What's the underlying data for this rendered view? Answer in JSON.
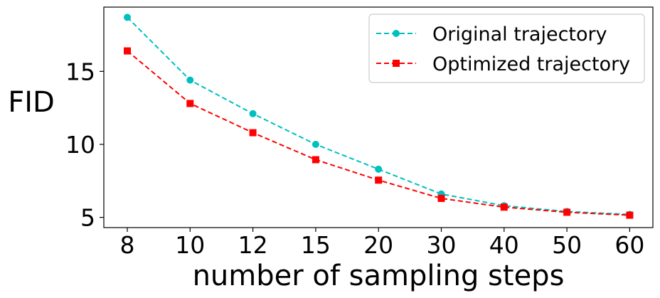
{
  "chart_data": {
    "type": "line",
    "title": "",
    "xlabel": "number of sampling steps",
    "ylabel": "FID",
    "categories": [
      "8",
      "10",
      "12",
      "15",
      "20",
      "30",
      "40",
      "50",
      "60"
    ],
    "yticks": [
      "5",
      "10",
      "15"
    ],
    "ylim": [
      4.3,
      19.4
    ],
    "grid": false,
    "legend_position": "top-right",
    "series": [
      {
        "name": "Original trajectory",
        "color": "#00BFBF",
        "marker": "circle",
        "linestyle": "dashed",
        "values": [
          18.7,
          14.4,
          12.1,
          10.0,
          8.3,
          6.6,
          5.8,
          5.4,
          5.2
        ]
      },
      {
        "name": "Optimized trajectory",
        "color": "#FF0000",
        "marker": "square",
        "linestyle": "dashed",
        "values": [
          16.4,
          12.8,
          10.8,
          8.95,
          7.55,
          6.3,
          5.7,
          5.35,
          5.15
        ]
      }
    ]
  }
}
